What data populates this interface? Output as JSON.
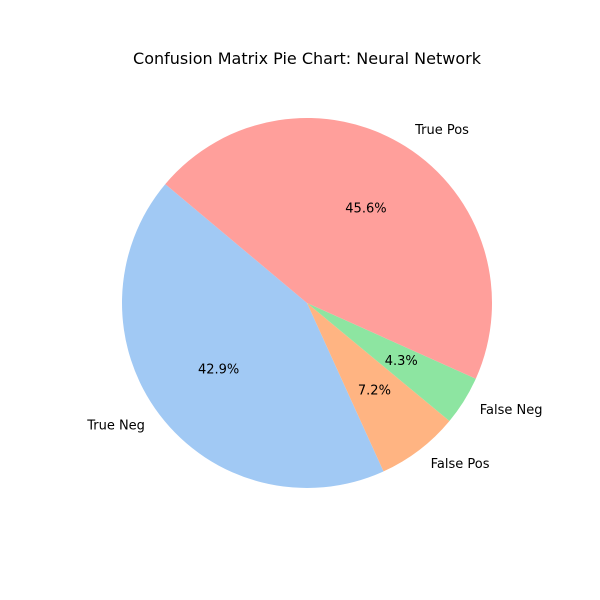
{
  "chart_data": {
    "type": "pie",
    "title": "Confusion Matrix Pie Chart: Neural Network",
    "labels": [
      "True Neg",
      "False Pos",
      "False Neg",
      "True Pos"
    ],
    "values": [
      42.9,
      7.2,
      4.3,
      45.6
    ],
    "value_labels": [
      "42.9%",
      "7.2%",
      "4.3%",
      "45.6%"
    ],
    "colors": [
      "#a1c9f4",
      "#ffb482",
      "#8de5a1",
      "#ff9f9b"
    ],
    "start_angle_deg": 140,
    "direction": "counterclockwise",
    "legend": "none"
  }
}
